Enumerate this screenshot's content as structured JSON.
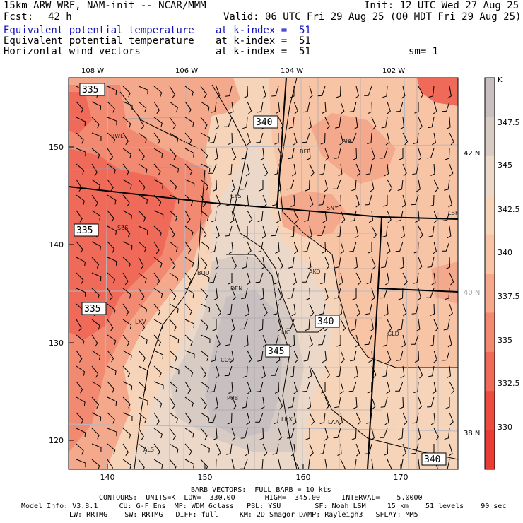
{
  "header": {
    "model": "15km ARW WRF, NAM-init -- NCAR/MMM",
    "init": "Init: 12 UTC Wed 27 Aug 25",
    "fcst_label": "Fcst:",
    "fcst_value": "42 h",
    "valid": "Valid: 06 UTC Fri 29 Aug 25 (00 MDT Fri 29 Aug 25)",
    "fields": [
      {
        "name": "Equivalent potential temperature",
        "level": "at k-index =  51",
        "color": "#1010c0"
      },
      {
        "name": "Equivalent potential temperature",
        "level": "at k-index =  51",
        "color": "#000000"
      },
      {
        "name": "Horizontal wind vectors",
        "level": "at k-index =  51",
        "color": "#000000"
      }
    ],
    "smoothing": "sm= 1"
  },
  "map": {
    "top_lon_labels": [
      "108 W",
      "106 W",
      "104 W",
      "102 W"
    ],
    "left_y_ticks": [
      "150",
      "140",
      "130",
      "120"
    ],
    "bottom_x_ticks": [
      "140",
      "150",
      "160",
      "170"
    ],
    "right_lat_labels": [
      "42 N",
      "40 N",
      "38 N"
    ],
    "stations": [
      "RWL",
      "BFF",
      "AIA",
      "CYS",
      "SNY",
      "LBF",
      "SBS",
      "BOU",
      "AKO",
      "DEN",
      "LXV",
      "LIC",
      "GLD",
      "COS",
      "PUB",
      "LHX",
      "LAA",
      "ALS"
    ],
    "contour_labels": [
      "335",
      "340",
      "335",
      "335",
      "340",
      "345",
      "340"
    ]
  },
  "colorbar": {
    "unit": "K",
    "labels": [
      "347.5",
      "345",
      "342.5",
      "340",
      "337.5",
      "335",
      "332.5",
      "330"
    ],
    "colors": [
      "#c8c0c0",
      "#d8cbc4",
      "#ecd8c8",
      "#f6d4b9",
      "#f8c4a6",
      "#f5a98c",
      "#f28a72",
      "#ef6a58",
      "#ec4c40",
      "#e83c34"
    ]
  },
  "footer": {
    "barb": "BARB VECTORS:  FULL BARB = 10 kts",
    "contours": "CONTOURS:  UNITS=K  LOW=  330.00       HIGH=  345.00     INTERVAL=    5.0000",
    "model_info_1": "Model Info: V3.8.1     CU: G-F Ens  MP: WDM 6class   PBL: YSU        SF: Noah LSM     15 km    51 levels    90 sec",
    "model_info_2": "LW: RRTMG    SW: RRTMG   DIFF: full     KM: 2D Smagor DAMP: Rayleigh3   SFLAY: MM5"
  }
}
